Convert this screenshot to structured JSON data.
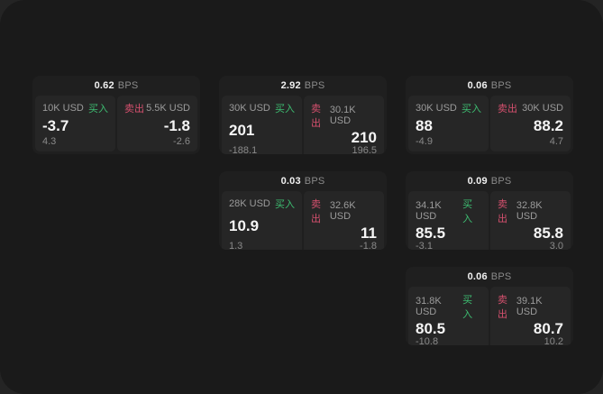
{
  "labels": {
    "bps_unit": "BPS",
    "buy": "买入",
    "sell": "卖出"
  },
  "colors": {
    "buy_green": "#3dbd71",
    "sell_red": "#d5506e",
    "page_bg": "#1a1a1a",
    "card_bg": "#1f1f1f",
    "panel_bg": "#262626"
  },
  "cards": [
    {
      "bps": "0.62",
      "buy": {
        "amount": "10K USD",
        "price": "-3.7",
        "delta": "4.3"
      },
      "sell": {
        "amount": "5.5K USD",
        "price": "-1.8",
        "delta": "-2.6"
      }
    },
    {
      "bps": "2.92",
      "buy": {
        "amount": "30K USD",
        "price": "201",
        "delta": "-188.1"
      },
      "sell": {
        "amount": "30.1K USD",
        "price": "210",
        "delta": "196.5"
      }
    },
    {
      "bps": "0.06",
      "buy": {
        "amount": "30K USD",
        "price": "88",
        "delta": "-4.9"
      },
      "sell": {
        "amount": "30K USD",
        "price": "88.2",
        "delta": "4.7"
      }
    },
    {
      "bps": "0.03",
      "buy": {
        "amount": "28K USD",
        "price": "10.9",
        "delta": "1.3"
      },
      "sell": {
        "amount": "32.6K USD",
        "price": "11",
        "delta": "-1.8"
      }
    },
    {
      "bps": "0.09",
      "buy": {
        "amount": "34.1K USD",
        "price": "85.5",
        "delta": "-3.1"
      },
      "sell": {
        "amount": "32.8K USD",
        "price": "85.8",
        "delta": "3.0"
      }
    },
    {
      "bps": "0.06",
      "buy": {
        "amount": "31.8K USD",
        "price": "80.5",
        "delta": "-10.8"
      },
      "sell": {
        "amount": "39.1K USD",
        "price": "80.7",
        "delta": "10.2"
      }
    }
  ]
}
